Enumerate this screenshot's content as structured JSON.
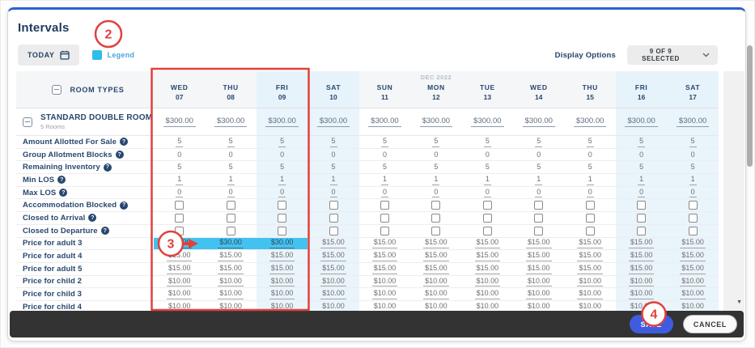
{
  "title": "Intervals",
  "toolbar": {
    "today_label": "TODAY",
    "legend_label": "Legend",
    "display_options_label": "Display Options",
    "display_options_value": "9 OF 9 SELECTED"
  },
  "table": {
    "room_types_header": "ROOM TYPES",
    "columns": [
      {
        "day": "WED",
        "date": "07",
        "weekend": false
      },
      {
        "day": "THU",
        "date": "08",
        "weekend": false
      },
      {
        "day": "FRI",
        "date": "09",
        "weekend": true
      },
      {
        "day": "SAT",
        "date": "10",
        "weekend": true
      },
      {
        "day": "SUN",
        "date": "11",
        "weekend": false
      },
      {
        "day": "MON",
        "date": "12",
        "weekend": false,
        "month_label": "DEC 2022"
      },
      {
        "day": "TUE",
        "date": "13",
        "weekend": false
      },
      {
        "day": "WED",
        "date": "14",
        "weekend": false
      },
      {
        "day": "THU",
        "date": "15",
        "weekend": false
      },
      {
        "day": "FRI",
        "date": "16",
        "weekend": true
      },
      {
        "day": "SAT",
        "date": "17",
        "weekend": true
      }
    ],
    "room": {
      "name": "STANDARD DOUBLE ROOM",
      "subtitle": "5 Rooms",
      "rates": [
        "$300.00",
        "$300.00",
        "$300.00",
        "$300.00",
        "$300.00",
        "$300.00",
        "$300.00",
        "$300.00",
        "$300.00",
        "$300.00",
        "$300.00"
      ]
    },
    "rows": [
      {
        "label": "Amount Allotted For Sale",
        "help": true,
        "type": "text",
        "editable": true,
        "values": [
          "5",
          "5",
          "5",
          "5",
          "5",
          "5",
          "5",
          "5",
          "5",
          "5",
          "5"
        ]
      },
      {
        "label": "Group Allotment Blocks",
        "help": true,
        "type": "text",
        "editable": false,
        "values": [
          "0",
          "0",
          "0",
          "0",
          "0",
          "0",
          "0",
          "0",
          "0",
          "0",
          "0"
        ]
      },
      {
        "label": "Remaining Inventory",
        "help": true,
        "type": "text",
        "editable": false,
        "values": [
          "5",
          "5",
          "5",
          "5",
          "5",
          "5",
          "5",
          "5",
          "5",
          "5",
          "5"
        ]
      },
      {
        "label": "Min LOS",
        "help": true,
        "type": "text",
        "editable": true,
        "values": [
          "1",
          "1",
          "1",
          "1",
          "1",
          "1",
          "1",
          "1",
          "1",
          "1",
          "1"
        ]
      },
      {
        "label": "Max LOS",
        "help": true,
        "type": "text",
        "editable": true,
        "values": [
          "0",
          "0",
          "0",
          "0",
          "0",
          "0",
          "0",
          "0",
          "0",
          "0",
          "0"
        ]
      },
      {
        "label": "Accommodation Blocked",
        "help": true,
        "type": "checkbox",
        "values": [
          false,
          false,
          false,
          false,
          false,
          false,
          false,
          false,
          false,
          false,
          false
        ]
      },
      {
        "label": "Closed to Arrival",
        "help": true,
        "type": "checkbox",
        "values": [
          false,
          false,
          false,
          false,
          false,
          false,
          false,
          false,
          false,
          false,
          false
        ]
      },
      {
        "label": "Closed to Departure",
        "help": true,
        "type": "checkbox",
        "values": [
          false,
          false,
          false,
          false,
          false,
          false,
          false,
          false,
          false,
          false,
          false
        ]
      },
      {
        "label": "Price for adult 3",
        "help": false,
        "type": "text",
        "editable": true,
        "highlighted": [
          0,
          1,
          2
        ],
        "values": [
          "$30.00",
          "$30.00",
          "$30.00",
          "$15.00",
          "$15.00",
          "$15.00",
          "$15.00",
          "$15.00",
          "$15.00",
          "$15.00",
          "$15.00"
        ]
      },
      {
        "label": "Price for adult 4",
        "help": false,
        "type": "text",
        "editable": true,
        "values": [
          "$15.00",
          "$15.00",
          "$15.00",
          "$15.00",
          "$15.00",
          "$15.00",
          "$15.00",
          "$15.00",
          "$15.00",
          "$15.00",
          "$15.00"
        ]
      },
      {
        "label": "Price for adult 5",
        "help": false,
        "type": "text",
        "editable": true,
        "values": [
          "$15.00",
          "$15.00",
          "$15.00",
          "$15.00",
          "$15.00",
          "$15.00",
          "$15.00",
          "$15.00",
          "$15.00",
          "$15.00",
          "$15.00"
        ]
      },
      {
        "label": "Price for child 2",
        "help": false,
        "type": "text",
        "editable": true,
        "values": [
          "$10.00",
          "$10.00",
          "$10.00",
          "$10.00",
          "$10.00",
          "$10.00",
          "$10.00",
          "$10.00",
          "$10.00",
          "$10.00",
          "$10.00"
        ]
      },
      {
        "label": "Price for child 3",
        "help": false,
        "type": "text",
        "editable": true,
        "values": [
          "$10.00",
          "$10.00",
          "$10.00",
          "$10.00",
          "$10.00",
          "$10.00",
          "$10.00",
          "$10.00",
          "$10.00",
          "$10.00",
          "$10.00"
        ]
      },
      {
        "label": "Price for child 4",
        "help": false,
        "type": "text",
        "editable": true,
        "values": [
          "$10.00",
          "$10.00",
          "$10.00",
          "$10.00",
          "$10.00",
          "$10.00",
          "$10.00",
          "$10.00",
          "$10.00",
          "$10.00",
          "$10.00"
        ]
      }
    ]
  },
  "footer": {
    "save_label": "SAVE",
    "cancel_label": "CANCEL"
  },
  "annotations": {
    "step2": "2",
    "step3": "3",
    "step4": "4"
  },
  "colors": {
    "accent_blue": "#2f5ed1",
    "legend_cyan": "#2fbdea",
    "highlight_cyan": "#42c2f0",
    "weekend_tint": "#e9f4fb",
    "annotation_red": "#e0413d",
    "save_blue": "#3f5ce0",
    "footer_bar": "#333333",
    "label_navy": "#27476f"
  }
}
